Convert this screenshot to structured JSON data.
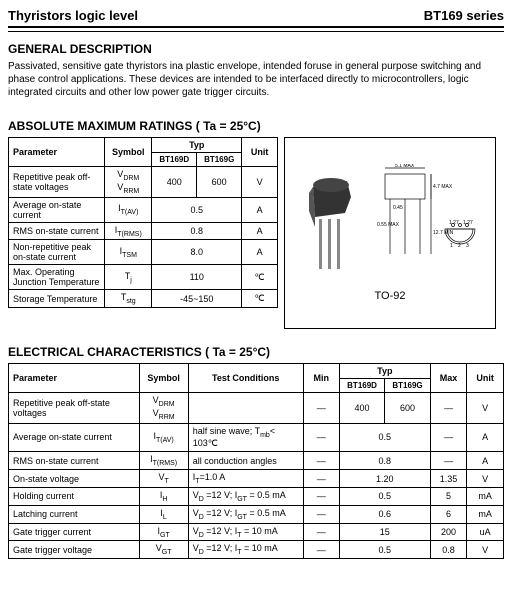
{
  "header": {
    "left": "Thyristors logic level",
    "right": "BT169 series"
  },
  "general": {
    "title": "GENERAL DESCRIPTION",
    "text": "Passivated, sensitive gate thyristors ina plastic envelope, intended foruse in general purpose switching and phase control applications. These devices are intended to be interfaced directly to microcontrollers, logic integrated circuits and other low power gate trigger circuits."
  },
  "amr": {
    "title": "ABSOLUTE MAXIMUM RATINGS ( Ta = 25°C)",
    "cols": {
      "param": "Parameter",
      "symbol": "Symbol",
      "typ": "Typ",
      "sub1": "BT169D",
      "sub2": "BT169G",
      "unit": "Unit"
    },
    "rows": [
      {
        "param": "Repetitive peak off-state voltages",
        "symbol": "V_DRM V_RRM",
        "v1": "400",
        "v2": "600",
        "unit": "V"
      },
      {
        "param": "Average on-state current",
        "symbol": "I_T(AV)",
        "merged": "0.5",
        "unit": "A"
      },
      {
        "param": "RMS on-state current",
        "symbol": "I_T(RMS)",
        "merged": "0.8",
        "unit": "A"
      },
      {
        "param": "Non-repetitive peak on-state current",
        "symbol": "I_TSM",
        "merged": "8.0",
        "unit": "A"
      },
      {
        "param": "Max. Operating Junction Temperature",
        "symbol": "T_j",
        "merged": "110",
        "unit": "℃"
      },
      {
        "param": "Storage Temperature",
        "symbol": "T_stg",
        "merged": "-45~150",
        "unit": "℃"
      }
    ],
    "package_label": "TO-92"
  },
  "elec": {
    "title": "ELECTRICAL CHARACTERISTICS ( Ta = 25°C)",
    "cols": {
      "param": "Parameter",
      "symbol": "Symbol",
      "cond": "Test   Conditions",
      "min": "Min",
      "typ": "Typ",
      "sub1": "BT169D",
      "sub2": "BT169G",
      "max": "Max",
      "unit": "Unit"
    },
    "rows": [
      {
        "param": "Repetitive peak off-state voltages",
        "symbol": "V_DRM V_RRM",
        "cond": "",
        "min": "—",
        "v1": "400",
        "v2": "600",
        "max": "—",
        "unit": "V"
      },
      {
        "param": "Average on-state current",
        "symbol": "I_T(AV)",
        "cond": "half sine wave; T_mb< 103℃",
        "min": "—",
        "merged": "0.5",
        "max": "—",
        "unit": "A"
      },
      {
        "param": "RMS on-state current",
        "symbol": "I_T(RMS)",
        "cond": "all conduction angles",
        "min": "—",
        "merged": "0.8",
        "max": "—",
        "unit": "A"
      },
      {
        "param": "On-state voltage",
        "symbol": "V_T",
        "cond": "I_T=1.0 A",
        "min": "—",
        "merged": "1.20",
        "max": "1.35",
        "unit": "V"
      },
      {
        "param": "Holding current",
        "symbol": "I_H",
        "cond": "V_D =12 V; I_GT = 0.5 mA",
        "min": "—",
        "merged": "0.5",
        "max": "5",
        "unit": "mA"
      },
      {
        "param": "Latching current",
        "symbol": "I_L",
        "cond": "V_D =12 V; I_GT = 0.5 mA",
        "min": "—",
        "merged": "0.6",
        "max": "6",
        "unit": "mA"
      },
      {
        "param": "Gate trigger current",
        "symbol": "I_GT",
        "cond": "V_D =12 V; I_T = 10 mA",
        "min": "—",
        "merged": "15",
        "max": "200",
        "unit": "uA"
      },
      {
        "param": "Gate trigger voltage",
        "symbol": "V_GT",
        "cond": "V_D =12 V; I_T = 10 mA",
        "min": "—",
        "merged": "0.5",
        "max": "0.8",
        "unit": "V"
      }
    ]
  },
  "pkg_dims": {
    "body_w": "5.1 MAX",
    "body_h": "4.7 MAX",
    "lead_w": "0.45",
    "lead_sp": "1.27",
    "total_h": "12.7 MIN",
    "pitch": "0.55 MAX"
  }
}
